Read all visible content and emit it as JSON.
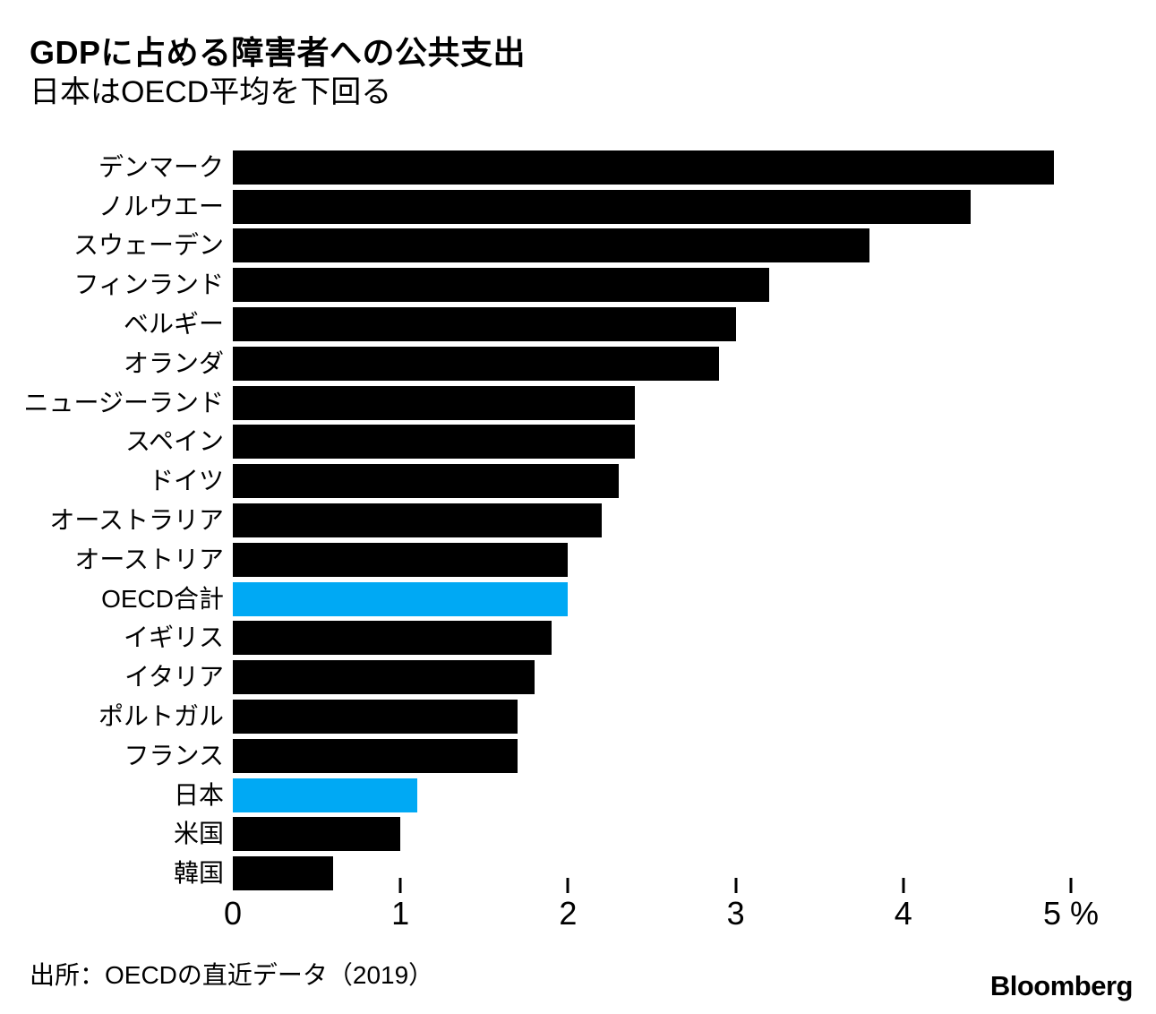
{
  "header": {
    "title": "GDPに占める障害者への公共支出",
    "subtitle": "日本はOECD平均を下回る"
  },
  "chart_data": {
    "type": "bar",
    "orientation": "horizontal",
    "title": "GDPに占める障害者への公共支出",
    "subtitle": "日本はOECD平均を下回る",
    "unit": "%",
    "xlim": [
      0,
      5
    ],
    "x_ticks": [
      0,
      1,
      2,
      3,
      4,
      5
    ],
    "x_tick_labels": [
      "0",
      "1",
      "2",
      "3",
      "4",
      "5 %"
    ],
    "grid": false,
    "categories": [
      "デンマーク",
      "ノルウエー",
      "スウェーデン",
      "フィンランド",
      "ベルギー",
      "オランダ",
      "ニュージーランド",
      "スペイン",
      "ドイツ",
      "オーストラリア",
      "オーストリア",
      "OECD合計",
      "イギリス",
      "イタリア",
      "ポルトガル",
      "フランス",
      "日本",
      "米国",
      "韓国"
    ],
    "values": [
      4.9,
      4.4,
      3.8,
      3.2,
      3.0,
      2.9,
      2.4,
      2.4,
      2.3,
      2.2,
      2.0,
      2.0,
      1.9,
      1.8,
      1.7,
      1.7,
      1.1,
      1.0,
      0.6
    ],
    "highlight_indices": [
      11,
      16
    ],
    "colors": {
      "bar": "#000000",
      "highlight": "#00a9f4"
    }
  },
  "footer": {
    "source": "出所：OECDの直近データ（2019）",
    "brand": "Bloomberg"
  }
}
